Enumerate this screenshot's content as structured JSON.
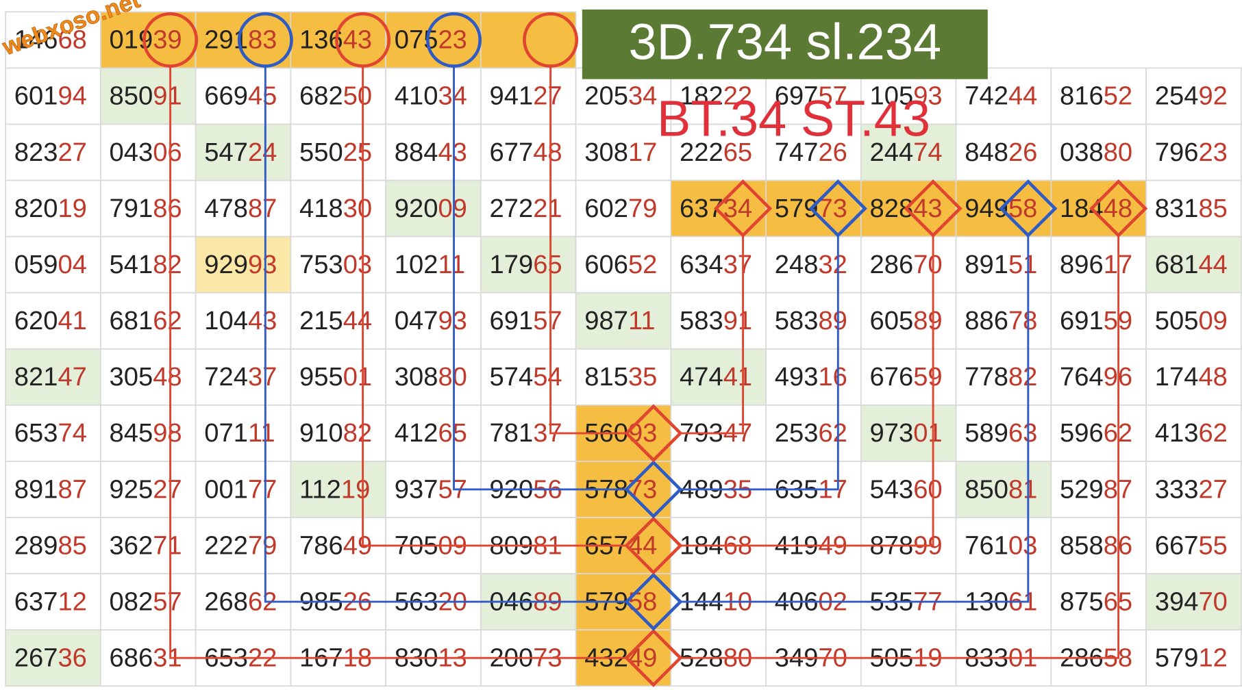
{
  "watermark": "webxoso.net",
  "banner": "3D.734 sl.234",
  "note": "BT.34 ST.43",
  "table": {
    "rows": [
      [
        "14668",
        "01939",
        "29183",
        "13643",
        "07523"
      ],
      [
        "60194",
        "85091",
        "66945",
        "68250",
        "41034",
        "94127",
        "20534",
        "18222",
        "69757",
        "10593",
        "74244",
        "81652",
        "25492"
      ],
      [
        "82327",
        "04306",
        "54724",
        "55025",
        "88443",
        "67748",
        "30817",
        "22265",
        "74726",
        "24474",
        "84826",
        "03880",
        "79623"
      ],
      [
        "82019",
        "79186",
        "47887",
        "41830",
        "92009",
        "27221",
        "60279",
        "63734",
        "57973",
        "82843",
        "94958",
        "18448",
        "83185"
      ],
      [
        "05904",
        "54182",
        "92993",
        "75303",
        "10211",
        "17965",
        "60652",
        "63437",
        "24832",
        "28670",
        "89151",
        "89617",
        "68144"
      ],
      [
        "62041",
        "68162",
        "10443",
        "21544",
        "04793",
        "69157",
        "98711",
        "58391",
        "58389",
        "60589",
        "88678",
        "69159",
        "50509"
      ],
      [
        "82147",
        "30548",
        "72437",
        "95501",
        "30880",
        "57454",
        "81535",
        "47441",
        "49316",
        "67659",
        "77882",
        "76496",
        "17448"
      ],
      [
        "65374",
        "84598",
        "07111",
        "91082",
        "41265",
        "78137",
        "56093",
        "79347",
        "25362",
        "97301",
        "58963",
        "59662",
        "41362"
      ],
      [
        "89187",
        "92527",
        "00177",
        "11219",
        "93757",
        "92056",
        "57873",
        "48935",
        "63517",
        "54360",
        "85081",
        "52987",
        "33327"
      ],
      [
        "28985",
        "36271",
        "22279",
        "78649",
        "70509",
        "80981",
        "65744",
        "18468",
        "41949",
        "87899",
        "76103",
        "85886",
        "66755"
      ],
      [
        "63712",
        "08257",
        "26862",
        "98526",
        "56320",
        "04689",
        "57958",
        "14410",
        "40602",
        "53577",
        "13061",
        "87565",
        "39470"
      ],
      [
        "26736",
        "68631",
        "65322",
        "16718",
        "83013",
        "20073",
        "43249",
        "52880",
        "34970",
        "50519",
        "83301",
        "28658",
        "57912"
      ]
    ]
  }
}
